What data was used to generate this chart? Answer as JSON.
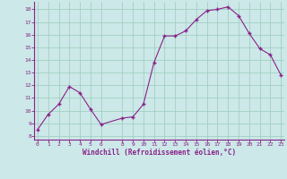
{
  "x": [
    0,
    1,
    2,
    3,
    4,
    5,
    6,
    8,
    9,
    10,
    11,
    12,
    13,
    14,
    15,
    16,
    17,
    18,
    19,
    20,
    21,
    22,
    23
  ],
  "y": [
    8.5,
    9.7,
    10.5,
    11.9,
    11.4,
    10.1,
    8.9,
    9.4,
    9.5,
    10.5,
    13.8,
    15.9,
    15.9,
    16.3,
    17.2,
    17.9,
    18.0,
    18.2,
    17.5,
    16.1,
    14.9,
    14.4,
    12.8
  ],
  "xticks": [
    0,
    1,
    2,
    3,
    4,
    5,
    6,
    8,
    9,
    10,
    11,
    12,
    13,
    14,
    15,
    16,
    17,
    18,
    19,
    20,
    21,
    22,
    23
  ],
  "yticks": [
    8,
    9,
    10,
    11,
    12,
    13,
    14,
    15,
    16,
    17,
    18
  ],
  "ylim": [
    7.7,
    18.6
  ],
  "xlim": [
    -0.3,
    23.3
  ],
  "xlabel": "Windchill (Refroidissement éolien,°C)",
  "line_color": "#882288",
  "marker": "+",
  "bg_color": "#cce8e8",
  "plot_bg_color": "#cce8e8",
  "grid_color": "#99ccbb",
  "tick_label_color": "#882288",
  "xlabel_color": "#882288",
  "spine_color": "#882288",
  "figsize": [
    3.2,
    2.0
  ],
  "dpi": 100
}
